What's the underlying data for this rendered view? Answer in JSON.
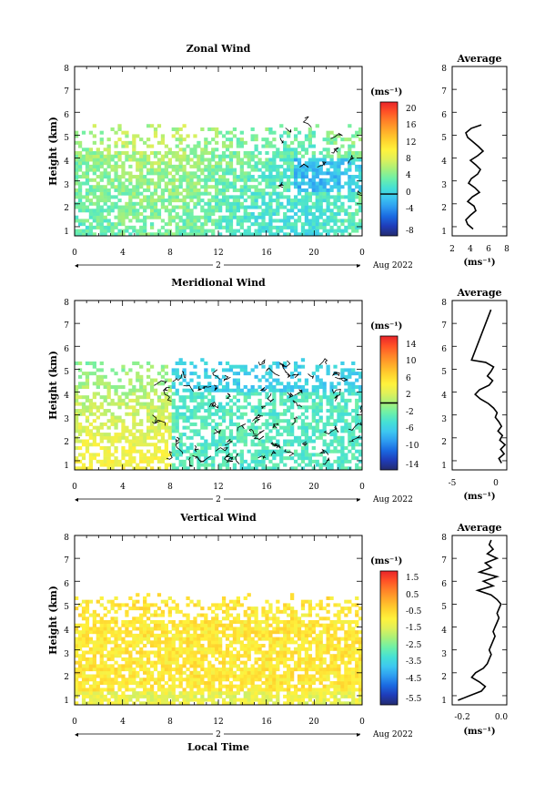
{
  "chart_data": [
    {
      "type": "heatmap",
      "title": "Zonal Wind",
      "ylabel": "Height (km)",
      "xlabel": "",
      "x_ticks": [
        "0",
        "4",
        "8",
        "12",
        "16",
        "20",
        "0"
      ],
      "y_ticks": [
        "1",
        "2",
        "3",
        "4",
        "5",
        "6",
        "7",
        "8"
      ],
      "date_label": "2",
      "month_label": "Aug 2022",
      "colorbar": {
        "unit": "(ms⁻¹)",
        "ticks": [
          "20",
          "16",
          "12",
          "8",
          "4",
          "0",
          "-4",
          "-8"
        ],
        "range": [
          -10,
          22
        ],
        "zero_line": 0
      },
      "xlim": [
        0,
        24
      ],
      "ylim": [
        0.6,
        8.0
      ],
      "data_top_km": 5.3,
      "fill_rate": 0.72,
      "base_value": 5,
      "contour": "sparse",
      "profile": {
        "title": "Average",
        "xlabel": "(ms⁻¹)",
        "x_ticks": [
          "2",
          "4",
          "6",
          "8"
        ],
        "xlim": [
          2,
          8
        ],
        "heights": [
          0.9,
          1.1,
          1.3,
          1.5,
          1.7,
          1.9,
          2.1,
          2.3,
          2.5,
          2.7,
          2.9,
          3.1,
          3.3,
          3.5,
          3.7,
          3.9,
          4.1,
          4.3,
          4.5,
          4.7,
          4.9,
          5.1,
          5.3,
          5.45
        ],
        "values": [
          4.3,
          3.7,
          3.5,
          4.0,
          4.6,
          4.4,
          3.7,
          4.2,
          5.0,
          4.5,
          3.8,
          4.1,
          4.8,
          5.1,
          4.6,
          4.0,
          4.8,
          5.4,
          4.9,
          4.3,
          3.7,
          3.5,
          4.1,
          5.2
        ]
      }
    },
    {
      "type": "heatmap",
      "title": "Meridional Wind",
      "ylabel": "Height (km)",
      "xlabel": "",
      "x_ticks": [
        "0",
        "4",
        "8",
        "12",
        "16",
        "20",
        "0"
      ],
      "y_ticks": [
        "1",
        "2",
        "3",
        "4",
        "5",
        "6",
        "7",
        "8"
      ],
      "date_label": "2",
      "month_label": "Aug 2022",
      "colorbar": {
        "unit": "(ms⁻¹)",
        "ticks": [
          "14",
          "10",
          "6",
          "2",
          "-2",
          "-6",
          "-10",
          "-14"
        ],
        "range": [
          -16,
          16
        ],
        "zero_line": 0
      },
      "xlim": [
        0,
        24
      ],
      "ylim": [
        0.6,
        8.0
      ],
      "data_top_km": 5.3,
      "fill_rate": 0.58,
      "base_value": 2,
      "contour": "dense",
      "profile": {
        "title": "Average",
        "xlabel": "(ms⁻¹)",
        "x_ticks": [
          "-5",
          "0"
        ],
        "xlim": [
          -5,
          1.2
        ],
        "heights": [
          0.9,
          1.1,
          1.3,
          1.5,
          1.7,
          1.9,
          2.1,
          2.3,
          2.5,
          2.7,
          2.9,
          3.1,
          3.3,
          3.5,
          3.7,
          3.9,
          4.1,
          4.3,
          4.5,
          4.7,
          4.9,
          5.1,
          5.3,
          5.4,
          7.6
        ],
        "values": [
          0.6,
          0.3,
          0.9,
          0.5,
          1.0,
          0.4,
          0.7,
          0.2,
          0.6,
          0.3,
          -0.1,
          0.1,
          -0.3,
          -0.9,
          -1.8,
          -2.4,
          -1.9,
          -0.8,
          -0.4,
          -1.0,
          -0.6,
          -0.3,
          -1.2,
          -2.8,
          -0.6
        ]
      }
    },
    {
      "type": "heatmap",
      "title": "Vertical Wind",
      "ylabel": "Height (km)",
      "xlabel": "Local Time",
      "x_ticks": [
        "0",
        "4",
        "8",
        "12",
        "16",
        "20",
        "0"
      ],
      "y_ticks": [
        "1",
        "2",
        "3",
        "4",
        "5",
        "6",
        "7",
        "8"
      ],
      "date_label": "2",
      "month_label": "Aug 2022",
      "colorbar": {
        "unit": "(ms⁻¹)",
        "ticks": [
          "1.5",
          "0.5",
          "-0.5",
          "-1.5",
          "-2.5",
          "-3.5",
          "-4.5",
          "-5.5"
        ],
        "range": [
          -6.0,
          2.0
        ],
        "zero_line": null
      },
      "xlim": [
        0,
        24
      ],
      "ylim": [
        0.6,
        8.0
      ],
      "data_top_km": 5.3,
      "fill_rate": 0.8,
      "base_value": -0.4,
      "contour": "none",
      "profile": {
        "title": "Average",
        "xlabel": "(ms⁻¹)",
        "x_ticks": [
          "-0.2",
          "0.0"
        ],
        "xlim": [
          -0.23,
          0.05
        ],
        "heights": [
          0.8,
          1.0,
          1.2,
          1.4,
          1.6,
          1.8,
          2.0,
          2.2,
          2.4,
          2.6,
          2.8,
          3.0,
          3.2,
          3.4,
          3.6,
          3.8,
          4.0,
          4.2,
          4.4,
          4.6,
          4.8,
          5.0,
          5.2,
          5.4,
          5.6,
          5.8,
          6.0,
          6.2,
          6.4,
          6.6,
          6.8,
          7.0,
          7.2,
          7.4,
          7.6,
          7.8
        ],
        "values": [
          -0.2,
          -0.14,
          -0.08,
          -0.06,
          -0.09,
          -0.13,
          -0.11,
          -0.07,
          -0.05,
          -0.04,
          -0.03,
          -0.04,
          -0.03,
          -0.02,
          -0.01,
          -0.02,
          -0.01,
          0.0,
          0.01,
          0.0,
          0.01,
          0.02,
          0.0,
          -0.03,
          -0.1,
          -0.02,
          -0.07,
          0.0,
          -0.09,
          -0.03,
          -0.06,
          0.0,
          -0.05,
          -0.02,
          -0.04,
          -0.03
        ]
      }
    }
  ]
}
